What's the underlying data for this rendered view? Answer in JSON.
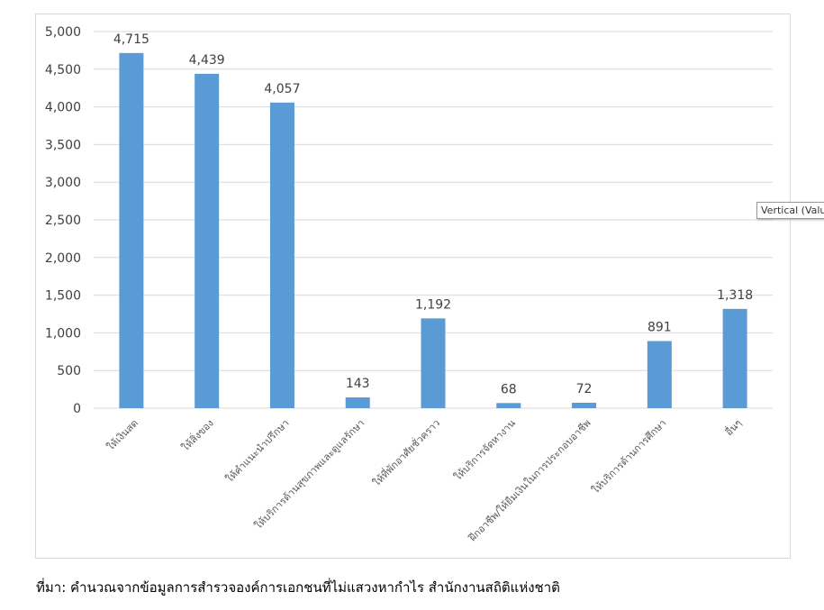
{
  "chart_data": {
    "type": "bar",
    "categories": [
      "ให้เงินสด",
      "ให้สิ่งของ",
      "ให้คำแนะนำปรึกษา",
      "ให้บริการด้านสุขภาพและดูแลรักษา",
      "ให้ที่พักอาศัยชั่วคราว",
      "ให้บริการจัดหางาน",
      "ฝึกอาชีพ/ให้ยืมเงินในการประกอบอาชีพ",
      "ให้บริการด้านการศึกษา",
      "อื่นๆ"
    ],
    "values": [
      4715,
      4439,
      4057,
      143,
      1192,
      68,
      72,
      891,
      1318
    ],
    "data_labels": [
      "4,715",
      "4,439",
      "4,057",
      "143",
      "1,192",
      "68",
      "72",
      "891",
      "1,318"
    ],
    "yticks": [
      "0",
      "500",
      "1,000",
      "1,500",
      "2,000",
      "2,500",
      "3,000",
      "3,500",
      "4,000",
      "4,500",
      "5,000"
    ],
    "ylim": [
      0,
      5000
    ],
    "grid": true,
    "bar_color": "#5b9bd5"
  },
  "tooltip": "Vertical (Value",
  "caption": "ที่มา: คำนวณจากข้อมูลการสำรวจองค์การเอกชนที่ไม่แสวงหากำไร สำนักงานสถิติแห่งชาติ"
}
